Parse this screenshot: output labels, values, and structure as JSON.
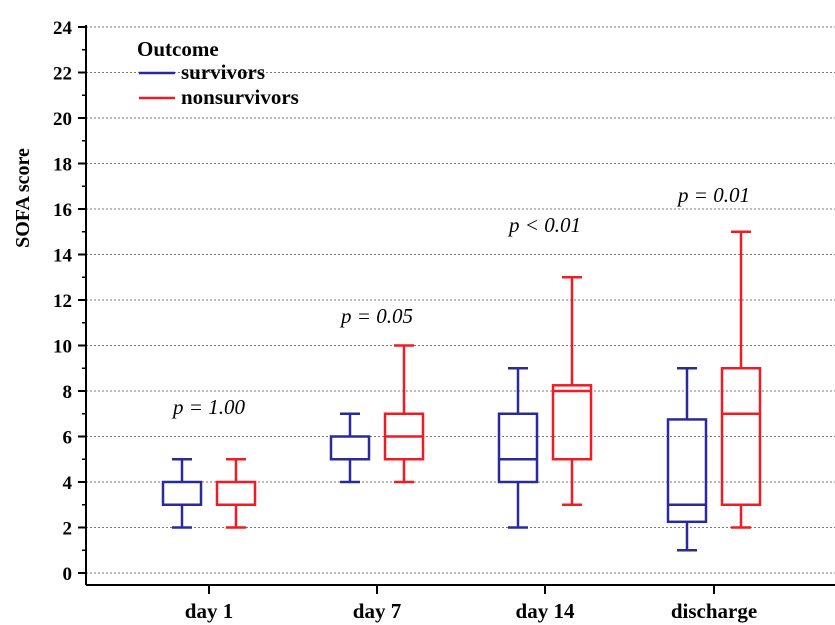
{
  "chart_data": {
    "type": "box",
    "ylabel": "SOFA score",
    "ylim": [
      0,
      24
    ],
    "yticks": [
      0,
      2,
      4,
      6,
      8,
      10,
      12,
      14,
      16,
      18,
      20,
      22,
      24
    ],
    "grid": true,
    "categories": [
      "day 1",
      "day 7",
      "day 14",
      "discharge"
    ],
    "p_values": [
      "p = 1.00",
      "p = 0.05",
      "p < 0.01",
      "p = 0.01"
    ],
    "p_value_y": [
      7,
      11,
      15,
      16.3
    ],
    "legend": {
      "title": "Outcome",
      "placement": "top-left",
      "entries": [
        {
          "label": "survivors",
          "color": "#2a2a9a"
        },
        {
          "label": "nonsurvivors",
          "color": "#ee1c24"
        }
      ]
    },
    "series": [
      {
        "name": "survivors",
        "color": "#2a2a9a",
        "boxes": [
          {
            "min": 2,
            "q1": 3,
            "median": 3,
            "q3": 4,
            "max": 5
          },
          {
            "min": 4,
            "q1": 5,
            "median": 5,
            "q3": 6,
            "max": 7
          },
          {
            "min": 2,
            "q1": 4,
            "median": 5,
            "q3": 7,
            "max": 9
          },
          {
            "min": 1,
            "q1": 2.25,
            "median": 3,
            "q3": 6.75,
            "max": 9
          }
        ]
      },
      {
        "name": "nonsurvivors",
        "color": "#ee1c24",
        "boxes": [
          {
            "min": 2,
            "q1": 3,
            "median": 3,
            "q3": 4,
            "max": 5
          },
          {
            "min": 4,
            "q1": 5,
            "median": 6,
            "q3": 7,
            "max": 10
          },
          {
            "min": 3,
            "q1": 5,
            "median": 8,
            "q3": 8.25,
            "max": 13
          },
          {
            "min": 2,
            "q1": 3,
            "median": 7,
            "q3": 9,
            "max": 15
          }
        ]
      }
    ]
  }
}
